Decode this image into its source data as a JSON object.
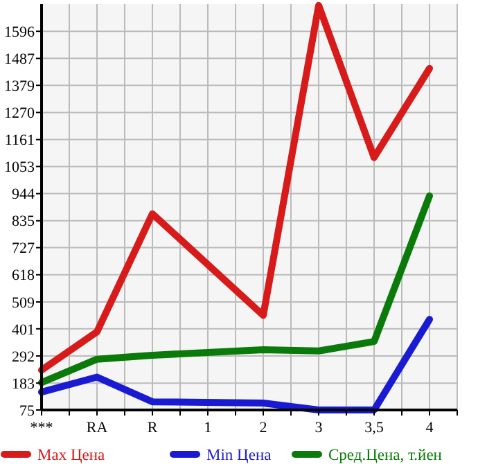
{
  "chart_data": {
    "type": "line",
    "categories": [
      "***",
      "RA",
      "R",
      "1",
      "2",
      "3",
      "3,5",
      "4"
    ],
    "series": [
      {
        "name": "Max Цена",
        "color": "#d71a1a",
        "values": [
          235,
          389,
          863,
          null,
          455,
          1700,
          1089,
          1447
        ]
      },
      {
        "name": "Min Цена",
        "color": "#1a1ad2",
        "values": [
          147,
          207,
          108,
          null,
          103,
          75,
          75,
          439
        ]
      },
      {
        "name": "Сред.Цена, т.йен",
        "color": "#0a7a0a",
        "values": [
          185,
          279,
          295,
          null,
          317,
          312,
          350,
          935
        ]
      }
    ],
    "ylim": [
      75,
      1705
    ],
    "yticks": [
      75,
      183,
      292,
      401,
      509,
      618,
      727,
      835,
      944,
      1053,
      1161,
      1270,
      1379,
      1487,
      1596
    ],
    "grid": true,
    "legend": "bottom",
    "line_style": "solid"
  }
}
